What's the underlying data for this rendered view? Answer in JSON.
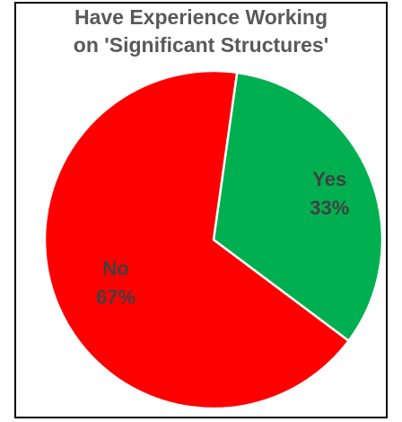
{
  "chart_data": {
    "type": "pie",
    "title_lines": [
      "Have Experience Working",
      "on 'Significant Structures'"
    ],
    "slices": [
      {
        "label": "Yes",
        "value": 33,
        "value_text": "33%",
        "color": "#00b050"
      },
      {
        "label": "No",
        "value": 67,
        "value_text": "67%",
        "color": "#ff0000"
      }
    ],
    "legend": "none",
    "slice_border_color": "#ffffff"
  }
}
